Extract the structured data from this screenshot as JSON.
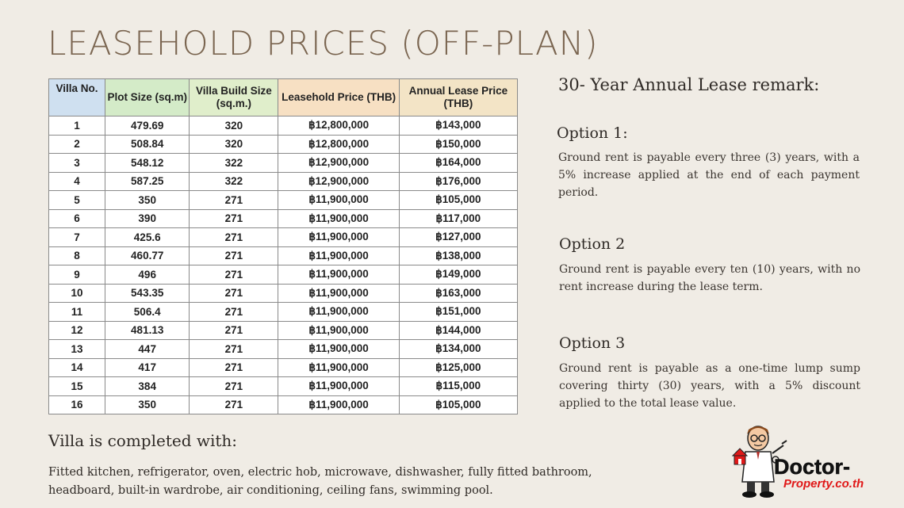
{
  "title": "LEASEHOLD PRICES (OFF-PLAN)",
  "table": {
    "headers": {
      "villa": "Villa No.",
      "plot": "Plot Size (sq.m)",
      "build": "Villa Build Size (sq.m.)",
      "lease": "Leasehold Price (THB)",
      "annual": "Annual Lease Price (THB)"
    },
    "rows": [
      [
        "1",
        "479.69",
        "320",
        "฿12,800,000",
        "฿143,000"
      ],
      [
        "2",
        "508.84",
        "320",
        "฿12,800,000",
        "฿150,000"
      ],
      [
        "3",
        "548.12",
        "322",
        "฿12,900,000",
        "฿164,000"
      ],
      [
        "4",
        "587.25",
        "322",
        "฿12,900,000",
        "฿176,000"
      ],
      [
        "5",
        "350",
        "271",
        "฿11,900,000",
        "฿105,000"
      ],
      [
        "6",
        "390",
        "271",
        "฿11,900,000",
        "฿117,000"
      ],
      [
        "7",
        "425.6",
        "271",
        "฿11,900,000",
        "฿127,000"
      ],
      [
        "8",
        "460.77",
        "271",
        "฿11,900,000",
        "฿138,000"
      ],
      [
        "9",
        "496",
        "271",
        "฿11,900,000",
        "฿149,000"
      ],
      [
        "10",
        "543.35",
        "271",
        "฿11,900,000",
        "฿163,000"
      ],
      [
        "11",
        "506.4",
        "271",
        "฿11,900,000",
        "฿151,000"
      ],
      [
        "12",
        "481.13",
        "271",
        "฿11,900,000",
        "฿144,000"
      ],
      [
        "13",
        "447",
        "271",
        "฿11,900,000",
        "฿134,000"
      ],
      [
        "14",
        "417",
        "271",
        "฿11,900,000",
        "฿125,000"
      ],
      [
        "15",
        "384",
        "271",
        "฿11,900,000",
        "฿115,000"
      ],
      [
        "16",
        "350",
        "271",
        "฿11,900,000",
        "฿105,000"
      ]
    ]
  },
  "remarks": {
    "title": "30- Year Annual Lease remark:",
    "options": [
      {
        "title": "Option 1:",
        "text": "Ground rent is payable every three (3) years, with a 5% increase applied at the end of each payment period."
      },
      {
        "title": "Option 2",
        "text": "Ground rent is payable every ten (10) years, with no rent increase during the lease term."
      },
      {
        "title": "Option 3",
        "text": "Ground rent is payable as a one-time lump sump covering thirty (30) years, with a 5% discount applied to the total lease value."
      }
    ]
  },
  "completed": {
    "title": "Villa is completed with:",
    "text": "Fitted kitchen, refrigerator, oven, electric hob, microwave, dishwasher, fully fitted bathroom, headboard, built-in wardrobe, air conditioning, ceiling fans, swimming pool."
  },
  "logo": {
    "word1": "Doctor-",
    "word2": "Property.co.th",
    "colors": {
      "black": "#111111",
      "red": "#e01818"
    }
  }
}
